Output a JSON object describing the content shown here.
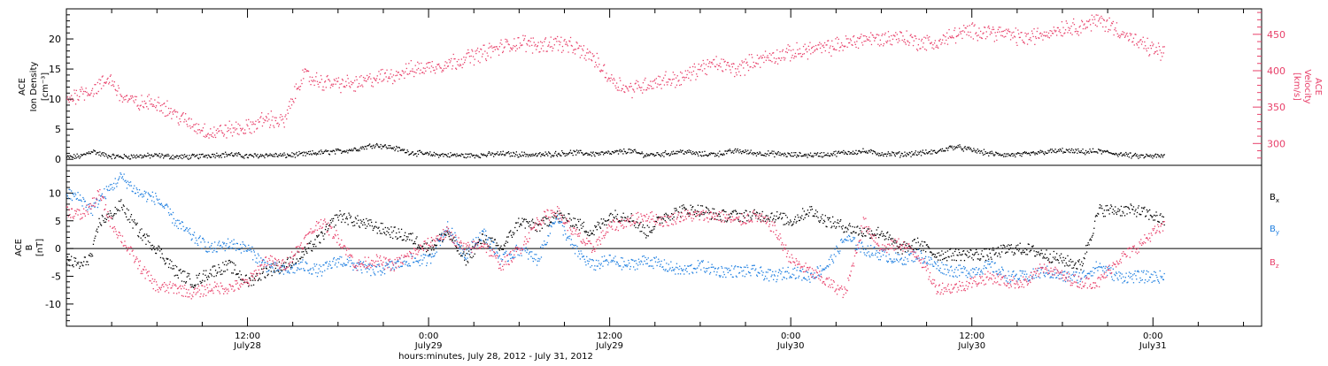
{
  "colors": {
    "black": "#000000",
    "blue": "#1f7fe0",
    "pink": "#e8406a",
    "axis": "#000000"
  },
  "chart_data": [
    {
      "type": "scatter",
      "panel": "top",
      "ylabel_lines": [
        "ACE",
        "Ion Density",
        "[cm⁻³]"
      ],
      "ylabel_right_lines": [
        "ACE",
        "Velocity",
        "[km/s]"
      ],
      "ylim": [
        -1,
        25
      ],
      "ylim_right": [
        270,
        485
      ],
      "left_ticks": [
        0,
        5,
        10,
        15,
        20
      ],
      "right_ticks": [
        300,
        350,
        400,
        450
      ],
      "grid": false,
      "series": [
        {
          "axis": "left",
          "color": "#000000",
          "x": [
            0.0,
            0.04,
            0.07,
            0.09,
            0.12,
            0.15,
            0.2,
            0.25,
            0.3,
            0.35,
            0.4,
            0.45,
            0.5,
            0.55,
            0.6,
            0.65,
            0.7,
            0.75,
            0.8,
            0.85,
            0.9,
            0.95,
            1.0,
            1.05,
            1.1,
            1.15,
            1.2,
            1.25,
            1.3,
            1.35,
            1.4,
            1.45,
            1.5,
            1.55,
            1.6,
            1.65,
            1.7,
            1.75,
            1.8,
            1.85,
            1.9,
            1.95,
            2.0,
            2.05,
            2.1,
            2.15,
            2.2,
            2.25,
            2.3,
            2.35,
            2.4,
            2.45,
            2.5,
            2.55,
            2.6,
            2.65,
            2.7,
            2.75,
            2.8,
            2.85,
            2.9,
            2.95,
            3.0,
            3.03
          ],
          "y": [
            0.4,
            0.6,
            1.5,
            1.0,
            0.6,
            0.5,
            0.6,
            0.7,
            0.5,
            0.5,
            0.8,
            0.9,
            0.6,
            0.8,
            0.7,
            0.9,
            1.2,
            1.4,
            1.8,
            2.5,
            2.0,
            1.2,
            0.9,
            0.8,
            0.7,
            0.8,
            1.0,
            0.9,
            0.8,
            1.0,
            1.2,
            1.0,
            1.1,
            1.5,
            0.8,
            1.0,
            1.4,
            0.9,
            1.0,
            1.5,
            1.1,
            1.0,
            0.8,
            0.8,
            0.9,
            1.2,
            1.4,
            1.0,
            0.9,
            1.1,
            1.3,
            2.2,
            1.6,
            1.0,
            0.8,
            0.9,
            1.3,
            1.5,
            1.3,
            1.4,
            1.0,
            0.6,
            0.6,
            0.6
          ]
        },
        {
          "axis": "right",
          "color": "#e8406a",
          "x": [
            0.0,
            0.04,
            0.07,
            0.09,
            0.12,
            0.15,
            0.2,
            0.25,
            0.3,
            0.35,
            0.4,
            0.45,
            0.5,
            0.55,
            0.6,
            0.65,
            0.7,
            0.75,
            0.8,
            0.85,
            0.9,
            0.95,
            1.0,
            1.05,
            1.1,
            1.15,
            1.2,
            1.25,
            1.3,
            1.35,
            1.4,
            1.45,
            1.5,
            1.55,
            1.6,
            1.65,
            1.7,
            1.75,
            1.8,
            1.85,
            1.9,
            1.95,
            2.0,
            2.05,
            2.1,
            2.15,
            2.2,
            2.25,
            2.3,
            2.35,
            2.4,
            2.45,
            2.5,
            2.55,
            2.6,
            2.65,
            2.7,
            2.75,
            2.8,
            2.85,
            2.9,
            2.95,
            3.0,
            3.03
          ],
          "y": [
            360,
            372,
            373,
            380,
            390,
            365,
            355,
            358,
            340,
            325,
            315,
            320,
            322,
            335,
            330,
            395,
            385,
            383,
            382,
            390,
            395,
            402,
            406,
            410,
            418,
            425,
            433,
            440,
            435,
            440,
            432,
            420,
            390,
            375,
            382,
            388,
            390,
            405,
            410,
            402,
            415,
            420,
            425,
            430,
            432,
            438,
            445,
            444,
            448,
            440,
            438,
            450,
            455,
            455,
            450,
            445,
            452,
            460,
            462,
            470,
            458,
            440,
            430,
            425
          ]
        }
      ]
    },
    {
      "type": "scatter",
      "panel": "bottom",
      "ylabel_lines": [
        "ACE",
        "B",
        "[nT]"
      ],
      "ylim": [
        -14,
        15
      ],
      "ticks": [
        -10,
        -5,
        0,
        5,
        10
      ],
      "grid": false,
      "zero_line": true,
      "legend_position": "right",
      "x_range_days": [
        0.0,
        3.3
      ],
      "xticks": [
        {
          "x": 0.5,
          "label": "12:00",
          "sub": "July28"
        },
        {
          "x": 1.0,
          "label": "0:00",
          "sub": "July29"
        },
        {
          "x": 1.5,
          "label": "12:00",
          "sub": "July29"
        },
        {
          "x": 2.0,
          "label": "0:00",
          "sub": "July30"
        },
        {
          "x": 2.5,
          "label": "12:00",
          "sub": "July30"
        },
        {
          "x": 3.0,
          "label": "0:00",
          "sub": "July31"
        }
      ],
      "xlabel": "hours:minutes, July 28, 2012 - July 31, 2012",
      "series": [
        {
          "name": "Bx",
          "color": "#000000",
          "x": [
            0.0,
            0.04,
            0.07,
            0.09,
            0.12,
            0.15,
            0.2,
            0.25,
            0.3,
            0.35,
            0.4,
            0.45,
            0.5,
            0.55,
            0.6,
            0.65,
            0.7,
            0.75,
            0.8,
            0.85,
            0.9,
            0.95,
            1.0,
            1.05,
            1.1,
            1.15,
            1.2,
            1.25,
            1.3,
            1.35,
            1.4,
            1.45,
            1.5,
            1.55,
            1.6,
            1.65,
            1.7,
            1.75,
            1.8,
            1.85,
            1.9,
            1.95,
            2.0,
            2.05,
            2.1,
            2.15,
            2.2,
            2.25,
            2.3,
            2.35,
            2.4,
            2.45,
            2.5,
            2.55,
            2.6,
            2.65,
            2.7,
            2.75,
            2.8,
            2.85,
            2.9,
            2.95,
            3.0,
            3.03
          ],
          "y": [
            -2,
            -3,
            -1,
            5,
            6,
            8,
            3,
            0,
            -4,
            -6,
            -4,
            -3,
            -6,
            -4,
            -3,
            -1,
            2,
            6,
            5,
            4,
            3,
            2,
            0,
            3,
            -2,
            2,
            0,
            5,
            4,
            6,
            5,
            3,
            6,
            6,
            3,
            6,
            7,
            7,
            6,
            6,
            6,
            6,
            5,
            7,
            5,
            4,
            3,
            3,
            0,
            1,
            -1,
            -1,
            -1,
            -1,
            0,
            0,
            -1,
            -2,
            -3,
            7,
            7,
            7,
            6,
            5
          ]
        },
        {
          "name": "By",
          "color": "#1f7fe0",
          "x": [
            0.0,
            0.04,
            0.07,
            0.09,
            0.12,
            0.15,
            0.2,
            0.25,
            0.3,
            0.35,
            0.4,
            0.45,
            0.5,
            0.55,
            0.6,
            0.65,
            0.7,
            0.75,
            0.8,
            0.85,
            0.9,
            0.95,
            1.0,
            1.05,
            1.1,
            1.15,
            1.2,
            1.25,
            1.3,
            1.35,
            1.4,
            1.45,
            1.5,
            1.55,
            1.6,
            1.65,
            1.7,
            1.75,
            1.8,
            1.85,
            1.9,
            1.95,
            2.0,
            2.05,
            2.1,
            2.15,
            2.2,
            2.25,
            2.3,
            2.35,
            2.4,
            2.45,
            2.5,
            2.55,
            2.6,
            2.65,
            2.7,
            2.75,
            2.8,
            2.85,
            2.9,
            2.95,
            3.0,
            3.03
          ],
          "y": [
            10,
            9,
            7,
            9,
            11,
            13,
            10,
            9,
            5,
            2,
            0,
            1,
            0,
            -3,
            -4,
            -3,
            -4,
            -2,
            -3,
            -4,
            -3,
            -2,
            -2,
            4,
            -1,
            3,
            -2,
            0,
            -2,
            6,
            0,
            -3,
            -2,
            -3,
            -2,
            -3,
            -4,
            -3,
            -4,
            -4,
            -4,
            -5,
            -4,
            -5,
            -3,
            2,
            0,
            -1,
            -2,
            -1,
            -3,
            -4,
            -4,
            -3,
            -5,
            -5,
            -4,
            -5,
            -5,
            -3,
            -5,
            -5,
            -5,
            -5
          ]
        },
        {
          "name": "Bz",
          "color": "#e8406a",
          "x": [
            0.0,
            0.04,
            0.07,
            0.09,
            0.12,
            0.15,
            0.2,
            0.25,
            0.3,
            0.35,
            0.4,
            0.45,
            0.5,
            0.55,
            0.6,
            0.65,
            0.7,
            0.75,
            0.8,
            0.85,
            0.9,
            0.95,
            1.0,
            1.05,
            1.1,
            1.15,
            1.2,
            1.25,
            1.3,
            1.35,
            1.4,
            1.45,
            1.5,
            1.55,
            1.6,
            1.65,
            1.7,
            1.75,
            1.8,
            1.85,
            1.9,
            1.95,
            2.0,
            2.05,
            2.1,
            2.15,
            2.2,
            2.25,
            2.3,
            2.35,
            2.4,
            2.45,
            2.5,
            2.55,
            2.6,
            2.65,
            2.7,
            2.75,
            2.8,
            2.85,
            2.9,
            2.95,
            3.0,
            3.03
          ],
          "y": [
            7,
            6,
            8,
            10,
            5,
            2,
            -3,
            -7,
            -7,
            -8,
            -7,
            -7,
            -6,
            -2,
            -3,
            1,
            5,
            2,
            -3,
            -2,
            -3,
            -1,
            1,
            3,
            0,
            1,
            -3,
            0,
            5,
            7,
            3,
            0,
            4,
            5,
            6,
            5,
            6,
            6,
            6,
            5,
            6,
            4,
            -2,
            -4,
            -6,
            -8,
            5,
            0,
            1,
            -1,
            -7,
            -7,
            -6,
            -5,
            -6,
            -6,
            -3,
            -5,
            -6,
            -6,
            -2,
            0,
            3,
            4
          ]
        }
      ]
    }
  ]
}
